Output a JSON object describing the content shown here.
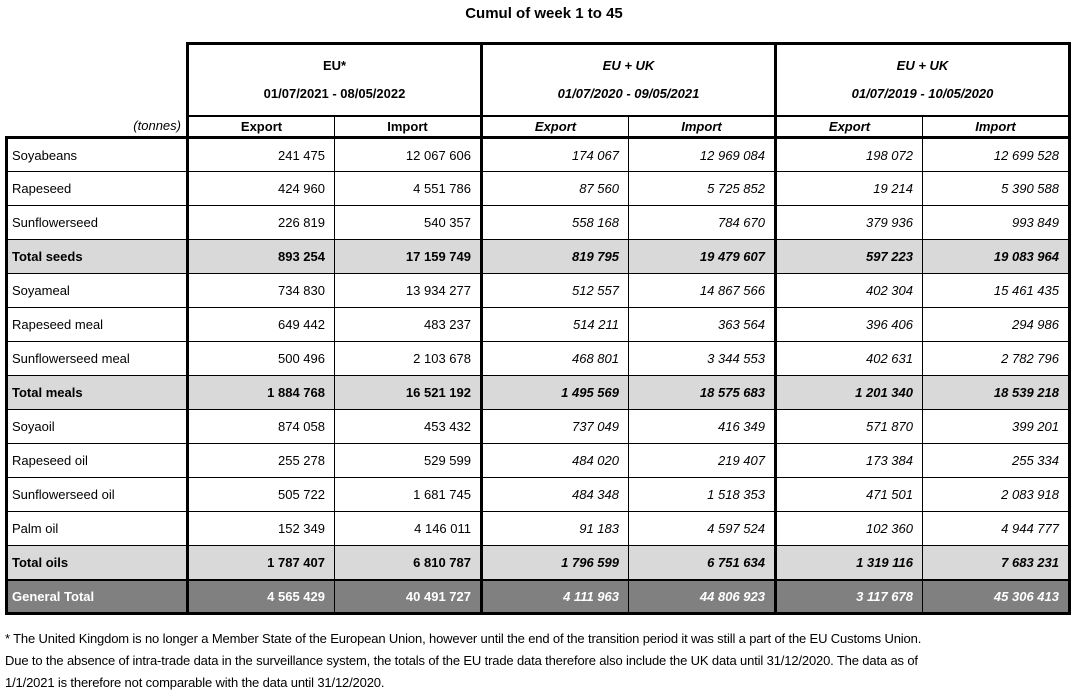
{
  "title": "Cumul of week 1 to 45",
  "unit_label": "(tonnes)",
  "table": {
    "groups": [
      {
        "name": "EU*",
        "period": "01/07/2021 - 08/05/2022",
        "italic": false
      },
      {
        "name": "EU + UK",
        "period": "01/07/2020 - 09/05/2021",
        "italic": true
      },
      {
        "name": "EU + UK",
        "period": "01/07/2019 - 10/05/2020",
        "italic": true
      }
    ],
    "col_headers": [
      "Export",
      "Import"
    ],
    "rows": [
      {
        "label": "Soyabeans",
        "type": "data",
        "values": [
          "241 475",
          "12 067 606",
          "174 067",
          "12 969 084",
          "198 072",
          "12 699 528"
        ]
      },
      {
        "label": "Rapeseed",
        "type": "data",
        "values": [
          "424 960",
          "4 551 786",
          "87 560",
          "5 725 852",
          "19 214",
          "5 390 588"
        ]
      },
      {
        "label": "Sunflowerseed",
        "type": "data",
        "values": [
          "226 819",
          "540 357",
          "558 168",
          "784 670",
          "379 936",
          "993 849"
        ]
      },
      {
        "label": "Total seeds",
        "type": "subtotal",
        "values": [
          "893 254",
          "17 159 749",
          "819 795",
          "19 479 607",
          "597 223",
          "19 083 964"
        ]
      },
      {
        "label": "Soyameal",
        "type": "data",
        "values": [
          "734 830",
          "13 934 277",
          "512 557",
          "14 867 566",
          "402 304",
          "15 461 435"
        ]
      },
      {
        "label": "Rapeseed meal",
        "type": "data",
        "values": [
          "649 442",
          "483 237",
          "514 211",
          "363 564",
          "396 406",
          "294 986"
        ]
      },
      {
        "label": "Sunflowerseed meal",
        "type": "data",
        "values": [
          "500 496",
          "2 103 678",
          "468 801",
          "3 344 553",
          "402 631",
          "2 782 796"
        ]
      },
      {
        "label": "Total meals",
        "type": "subtotal",
        "values": [
          "1 884 768",
          "16 521 192",
          "1 495 569",
          "18 575 683",
          "1 201 340",
          "18 539 218"
        ]
      },
      {
        "label": "Soyaoil",
        "type": "data",
        "values": [
          "874 058",
          "453 432",
          "737 049",
          "416 349",
          "571 870",
          "399 201"
        ]
      },
      {
        "label": "Rapeseed oil",
        "type": "data",
        "values": [
          "255 278",
          "529 599",
          "484 020",
          "219 407",
          "173 384",
          "255 334"
        ]
      },
      {
        "label": "Sunflowerseed oil",
        "type": "data",
        "values": [
          "505 722",
          "1 681 745",
          "484 348",
          "1 518 353",
          "471 501",
          "2 083 918"
        ]
      },
      {
        "label": "Palm oil",
        "type": "data",
        "values": [
          "152 349",
          "4 146 011",
          "91 183",
          "4 597 524",
          "102 360",
          "4 944 777"
        ]
      },
      {
        "label": "Total oils",
        "type": "subtotal",
        "values": [
          "1 787 407",
          "6 810 787",
          "1 796 599",
          "6 751 634",
          "1 319 116",
          "7 683 231"
        ]
      },
      {
        "label": "General Total",
        "type": "grandtotal",
        "values": [
          "4 565 429",
          "40 491 727",
          "4 111 963",
          "44 806 923",
          "3 117 678",
          "45 306 413"
        ]
      }
    ]
  },
  "footnote": {
    "lines": [
      "* The United Kingdom is no longer a Member State of the European Union, however until the end of the transition period it was still a part of the EU Customs Union.",
      "Due to the absence of intra-trade data in the surveillance system, the totals of the EU trade data  therefore also include the UK data until 31/12/2020. The data as of",
      "1/1/2021 is therefore not comparable with the data until 31/12/2020."
    ]
  },
  "colors": {
    "subtotal_bg": "#d9d9d9",
    "grandtotal_bg": "#808080",
    "grandtotal_text": "#ffffff",
    "border": "#000000"
  }
}
